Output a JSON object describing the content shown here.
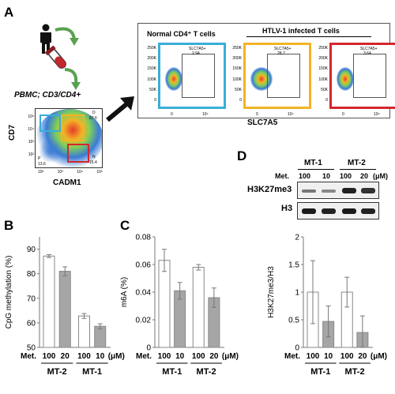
{
  "panels": {
    "A": {
      "letter": "A",
      "source_label": "PBMC; CD3/CD4+",
      "dotplot": {
        "ylabel": "CD7",
        "xlabel": "CADM1",
        "quadrants": {
          "D": "D",
          "D_val": "67.6",
          "P": "P",
          "P_val": "13.6",
          "N": "N",
          "N_val": "15.4"
        },
        "yticks": [
          "10⁵",
          "10⁴",
          "10³",
          "10²"
        ],
        "xticks": [
          "10²",
          "10³",
          "10⁴",
          "10⁵"
        ]
      },
      "header_normal": "Normal CD4⁺ T cells",
      "header_htlv": "HTLV-1 infected T cells",
      "xaxis_label": "SLC7A5",
      "yticks": [
        "250K",
        "200K",
        "150K",
        "100K",
        "50K",
        "0"
      ],
      "xticks": [
        "0",
        "10⁴"
      ],
      "flow_panels": [
        {
          "gate_label": "SLC7A5+",
          "value": "2.94",
          "color": "#3aaed8"
        },
        {
          "gate_label": "SLC7A5+",
          "value": "28.7",
          "color": "#f3b325"
        },
        {
          "gate_label": "SLC7A5+",
          "value": "3.64",
          "color": "#d4262e"
        }
      ]
    },
    "B": {
      "letter": "B"
    },
    "C": {
      "letter": "C"
    },
    "D": {
      "letter": "D",
      "lines": [
        "MT-1",
        "MT-2"
      ],
      "met_label": "Met.",
      "doses": [
        "100",
        "10",
        "100",
        "20"
      ],
      "unit": "(μM)",
      "bands": [
        "H3K27me3",
        "H3"
      ]
    }
  },
  "chart_data": [
    {
      "type": "bar",
      "panel": "B",
      "ylabel": "CpG methylation (%)",
      "ylim": [
        50,
        95
      ],
      "yticks": [
        50,
        60,
        70,
        80,
        90
      ],
      "x_row_label": "Met.",
      "categories": [
        "100",
        "20",
        "100",
        "10"
      ],
      "unit": "(μM)",
      "groups": [
        "MT-2",
        "MT-1"
      ],
      "values": [
        87.2,
        81.0,
        62.8,
        58.6
      ],
      "errors": [
        0.6,
        1.8,
        1.0,
        1.0
      ],
      "bar_colors": [
        "#ffffff",
        "#a6a6a6",
        "#ffffff",
        "#a6a6a6"
      ]
    },
    {
      "type": "bar",
      "panel": "C",
      "ylabel": "m6A (%)",
      "ylim": [
        0,
        0.08
      ],
      "yticks": [
        "0",
        "0.02",
        "0.04",
        "0.06",
        "0.08"
      ],
      "x_row_label": "Met.",
      "categories": [
        "100",
        "10",
        "100",
        "20"
      ],
      "unit": "(μM)",
      "groups": [
        "MT-1",
        "MT-2"
      ],
      "values": [
        0.063,
        0.041,
        0.058,
        0.036
      ],
      "errors": [
        0.008,
        0.006,
        0.002,
        0.007
      ],
      "bar_colors": [
        "#ffffff",
        "#a6a6a6",
        "#ffffff",
        "#a6a6a6"
      ]
    },
    {
      "type": "bar",
      "panel": "D-quant",
      "ylabel": "H3K27me3/H3",
      "ylim": [
        0,
        2
      ],
      "yticks": [
        "0",
        "0.5",
        "1",
        "1.5",
        "2"
      ],
      "x_row_label": "Met.",
      "categories": [
        "100",
        "10",
        "100",
        "20"
      ],
      "unit": "(μM)",
      "groups": [
        "MT-1",
        "MT-2"
      ],
      "values": [
        1.0,
        0.47,
        1.0,
        0.27
      ],
      "errors": [
        0.57,
        0.28,
        0.27,
        0.3
      ],
      "bar_colors": [
        "#ffffff",
        "#a6a6a6",
        "#ffffff",
        "#a6a6a6"
      ]
    }
  ]
}
